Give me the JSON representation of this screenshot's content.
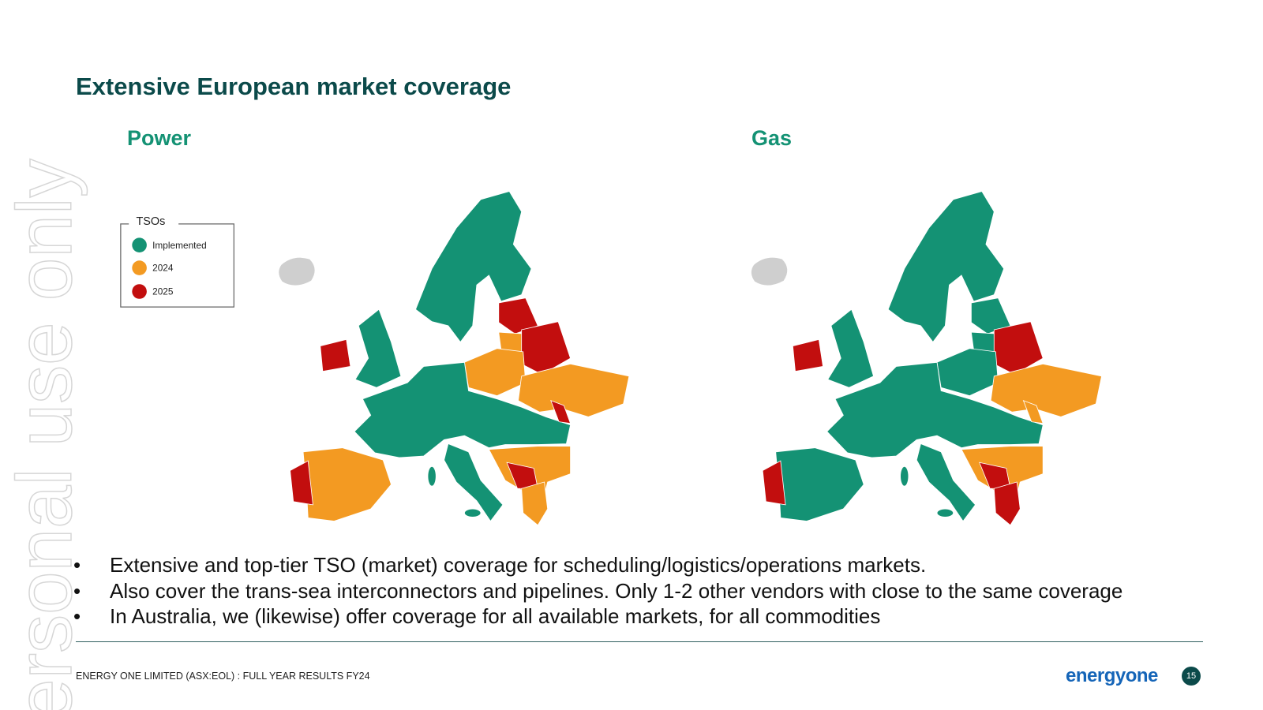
{
  "header": {
    "title": "Extensive European market coverage"
  },
  "maps": [
    {
      "title": "Power"
    },
    {
      "title": "Gas"
    }
  ],
  "legend": {
    "title": "TSOs",
    "items": [
      "Implemented",
      "2024",
      "2025"
    ]
  },
  "bullets": [
    "Extensive and top-tier TSO (market) coverage for scheduling/logistics/operations markets.",
    "Also cover the trans-sea interconnectors and pipelines. Only 1-2 other vendors with close to the same coverage",
    "In Australia, we (likewise) offer coverage for all available markets, for all commodities"
  ],
  "footer": {
    "text": "ENERGY ONE LIMITED (ASX:EOL) : FULL YEAR RESULTS FY24",
    "logo": "energyone",
    "page": "15"
  },
  "watermark": "ersonal use only"
}
